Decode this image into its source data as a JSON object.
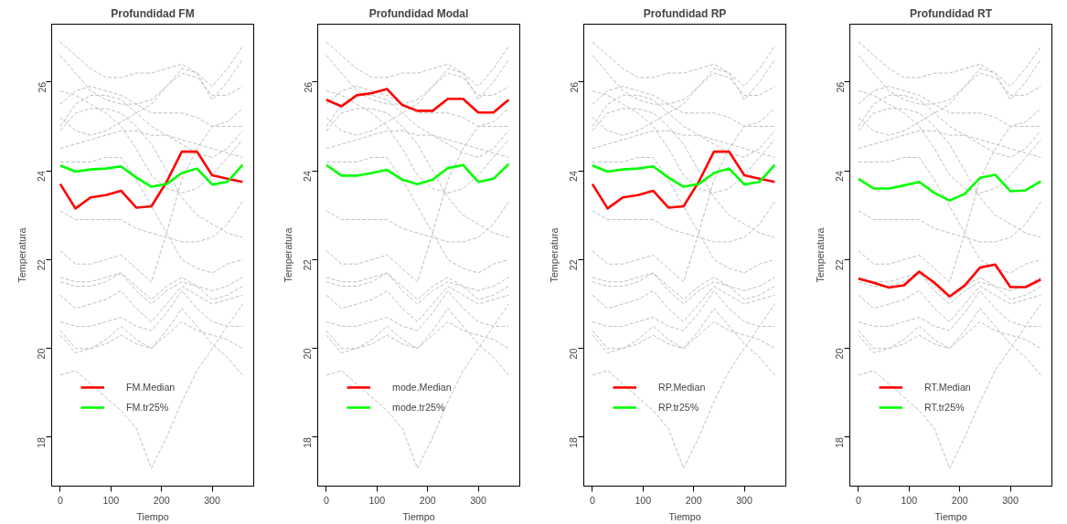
{
  "chart_data": [
    {
      "type": "line",
      "title": "Profundidad FM",
      "xlabel": "Tiempo",
      "ylabel": "Temperatura",
      "x": [
        0,
        30,
        60,
        90,
        120,
        150,
        180,
        210,
        240,
        270,
        300,
        330,
        360
      ],
      "xlim": [
        -17,
        382
      ],
      "ylim": [
        16.9,
        27.3
      ],
      "xticks": [
        0,
        100,
        200,
        300
      ],
      "yticks": [
        18,
        20,
        22,
        24,
        26
      ],
      "grid": false,
      "legend": "bottom left",
      "series": [
        {
          "color": "#bebebe",
          "line_style": "dashed",
          "values": [
            26.9,
            26.6,
            26.3,
            26.1,
            26.1,
            26.2,
            26.2,
            26.3,
            26.4,
            26.2,
            25.9,
            26.3,
            26.8
          ]
        },
        {
          "color": "#bebebe",
          "line_style": "dashed",
          "values": [
            26.6,
            26.2,
            25.8,
            25.6,
            25.5,
            25.5,
            25.6,
            25.9,
            26.3,
            26.2,
            25.6,
            26.0,
            26.5
          ]
        },
        {
          "color": "#bebebe",
          "line_style": "dashed",
          "values": [
            25.0,
            25.5,
            25.7,
            25.7,
            25.6,
            25.3,
            25.0,
            24.8,
            24.6,
            24.4,
            24.3,
            24.5,
            24.9
          ]
        },
        {
          "color": "#bebebe",
          "line_style": "dashed",
          "values": [
            25.2,
            24.9,
            24.8,
            24.9,
            25.1,
            25.3,
            25.5,
            25.9,
            26.2,
            26.1,
            25.7,
            25.7,
            25.9
          ]
        },
        {
          "color": "#bebebe",
          "line_style": "dashed",
          "values": [
            25.5,
            25.8,
            25.9,
            25.8,
            25.7,
            25.5,
            25.3,
            25.3,
            25.3,
            25.2,
            25.0,
            25.1,
            25.4
          ]
        },
        {
          "color": "#bebebe",
          "line_style": "dashed",
          "values": [
            24.9,
            25.3,
            25.4,
            25.4,
            25.3,
            25.0,
            24.6,
            24.0,
            23.4,
            23.0,
            22.8,
            22.6,
            22.5
          ]
        },
        {
          "color": "#bebebe",
          "line_style": "dashed",
          "values": [
            24.5,
            24.6,
            24.7,
            24.8,
            24.9,
            24.9,
            24.8,
            24.8,
            24.7,
            24.6,
            24.5,
            24.4,
            24.3
          ]
        },
        {
          "color": "#bebebe",
          "line_style": "dashed",
          "values": [
            23.1,
            22.9,
            22.9,
            22.9,
            22.9,
            22.7,
            22.6,
            22.5,
            22.4,
            22.4,
            22.5,
            22.8,
            23.3
          ]
        },
        {
          "color": "#bebebe",
          "line_style": "dashed",
          "values": [
            24.2,
            24.2,
            24.2,
            24.3,
            24.3,
            23.8,
            23.2,
            22.6,
            22.0,
            21.8,
            21.7,
            21.9,
            22.0
          ]
        },
        {
          "color": "#bebebe",
          "line_style": "dashed",
          "values": [
            22.2,
            21.9,
            21.9,
            22.0,
            22.1,
            21.8,
            21.5,
            22.6,
            23.8,
            24.5,
            25.0,
            25.0,
            25.0
          ]
        },
        {
          "color": "#bebebe",
          "line_style": "dashed",
          "values": [
            21.6,
            21.5,
            21.5,
            21.6,
            21.7,
            21.4,
            21.1,
            21.4,
            21.6,
            21.4,
            21.1,
            21.2,
            21.4
          ]
        },
        {
          "color": "#bebebe",
          "line_style": "dashed",
          "values": [
            21.5,
            21.4,
            21.4,
            21.5,
            21.7,
            21.3,
            21.0,
            21.3,
            21.5,
            21.4,
            21.3,
            21.4,
            21.6
          ]
        },
        {
          "color": "#bebebe",
          "line_style": "dashed",
          "values": [
            21.2,
            20.9,
            21.0,
            21.1,
            21.3,
            20.9,
            20.6,
            21.0,
            21.4,
            21.2,
            21.0,
            21.1,
            21.2
          ]
        },
        {
          "color": "#bebebe",
          "line_style": "dashed",
          "values": [
            20.6,
            20.5,
            20.5,
            20.6,
            20.7,
            20.5,
            20.4,
            20.8,
            21.3,
            20.9,
            20.6,
            20.5,
            20.5
          ]
        },
        {
          "color": "#bebebe",
          "line_style": "dashed",
          "values": [
            20.4,
            20.0,
            20.0,
            20.1,
            20.3,
            20.1,
            20.0,
            20.3,
            20.6,
            20.4,
            20.3,
            20.2,
            20.0
          ]
        },
        {
          "color": "#bebebe",
          "line_style": "dashed",
          "values": [
            19.4,
            19.5,
            19.2,
            18.9,
            18.6,
            18.2,
            17.3,
            18.0,
            18.8,
            19.5,
            20.0,
            20.5,
            21.0
          ]
        },
        {
          "color": "#bebebe",
          "line_style": "dashed",
          "values": [
            20.3,
            19.9,
            20.0,
            20.2,
            20.5,
            20.2,
            20.0,
            20.4,
            20.9,
            20.5,
            20.1,
            19.8,
            19.4
          ]
        },
        {
          "color": "#bebebe",
          "line_style": "dashed",
          "values": [
            25.8,
            25.7,
            25.5,
            25.3,
            25.0,
            24.5,
            23.9,
            23.6,
            23.5,
            23.6,
            23.9,
            24.3,
            24.7
          ]
        },
        {
          "name": "FM.Median",
          "color": "#ff0000",
          "line_style": "solid",
          "values": [
            23.7,
            23.15,
            23.4,
            23.45,
            23.55,
            23.17,
            23.2,
            23.75,
            24.43,
            24.43,
            23.9,
            23.82,
            23.75
          ]
        },
        {
          "name": "FM.tr25%",
          "color": "#00ff00",
          "line_style": "solid",
          "values": [
            24.12,
            23.98,
            24.03,
            24.05,
            24.1,
            23.85,
            23.64,
            23.7,
            23.95,
            24.05,
            23.69,
            23.75,
            24.13
          ]
        }
      ]
    },
    {
      "type": "line",
      "title": "Profundidad Modal",
      "xlabel": "Tiempo",
      "ylabel": "Temperatura",
      "x": [
        0,
        30,
        60,
        90,
        120,
        150,
        180,
        210,
        240,
        270,
        300,
        330,
        360
      ],
      "xlim": [
        -17,
        382
      ],
      "ylim": [
        16.9,
        27.3
      ],
      "xticks": [
        0,
        100,
        200,
        300
      ],
      "yticks": [
        18,
        20,
        22,
        24,
        26
      ],
      "grid": false,
      "legend": "bottom left",
      "series": [
        {
          "color": "#bebebe",
          "line_style": "dashed",
          "values": [
            26.9,
            26.6,
            26.3,
            26.1,
            26.1,
            26.2,
            26.2,
            26.3,
            26.4,
            26.2,
            25.9,
            26.3,
            26.8
          ]
        },
        {
          "color": "#bebebe",
          "line_style": "dashed",
          "values": [
            26.6,
            26.2,
            25.8,
            25.6,
            25.5,
            25.5,
            25.6,
            25.9,
            26.3,
            26.2,
            25.6,
            26.0,
            26.5
          ]
        },
        {
          "color": "#bebebe",
          "line_style": "dashed",
          "values": [
            25.0,
            25.5,
            25.7,
            25.7,
            25.6,
            25.3,
            25.0,
            24.8,
            24.6,
            24.4,
            24.3,
            24.5,
            24.9
          ]
        },
        {
          "color": "#bebebe",
          "line_style": "dashed",
          "values": [
            25.2,
            24.9,
            24.8,
            24.9,
            25.1,
            25.3,
            25.5,
            25.9,
            26.2,
            26.1,
            25.7,
            25.7,
            25.9
          ]
        },
        {
          "color": "#bebebe",
          "line_style": "dashed",
          "values": [
            25.5,
            25.8,
            25.9,
            25.8,
            25.7,
            25.5,
            25.3,
            25.3,
            25.3,
            25.2,
            25.0,
            25.1,
            25.4
          ]
        },
        {
          "color": "#bebebe",
          "line_style": "dashed",
          "values": [
            24.9,
            25.3,
            25.4,
            25.4,
            25.3,
            25.0,
            24.6,
            24.0,
            23.4,
            23.0,
            22.8,
            22.6,
            22.5
          ]
        },
        {
          "color": "#bebebe",
          "line_style": "dashed",
          "values": [
            24.5,
            24.6,
            24.7,
            24.8,
            24.9,
            24.9,
            24.8,
            24.8,
            24.7,
            24.6,
            24.5,
            24.4,
            24.3
          ]
        },
        {
          "color": "#bebebe",
          "line_style": "dashed",
          "values": [
            23.1,
            22.9,
            22.9,
            22.9,
            22.9,
            22.7,
            22.6,
            22.5,
            22.4,
            22.4,
            22.5,
            22.8,
            23.3
          ]
        },
        {
          "color": "#bebebe",
          "line_style": "dashed",
          "values": [
            24.2,
            24.2,
            24.2,
            24.3,
            24.3,
            23.8,
            23.2,
            22.6,
            22.0,
            21.8,
            21.7,
            21.9,
            22.0
          ]
        },
        {
          "color": "#bebebe",
          "line_style": "dashed",
          "values": [
            22.2,
            21.9,
            21.9,
            22.0,
            22.1,
            21.8,
            21.5,
            22.6,
            23.8,
            24.5,
            25.0,
            25.0,
            25.0
          ]
        },
        {
          "color": "#bebebe",
          "line_style": "dashed",
          "values": [
            21.6,
            21.5,
            21.5,
            21.6,
            21.7,
            21.4,
            21.1,
            21.4,
            21.6,
            21.4,
            21.1,
            21.2,
            21.4
          ]
        },
        {
          "color": "#bebebe",
          "line_style": "dashed",
          "values": [
            21.5,
            21.4,
            21.4,
            21.5,
            21.7,
            21.3,
            21.0,
            21.3,
            21.5,
            21.4,
            21.3,
            21.4,
            21.6
          ]
        },
        {
          "color": "#bebebe",
          "line_style": "dashed",
          "values": [
            21.2,
            20.9,
            21.0,
            21.1,
            21.3,
            20.9,
            20.6,
            21.0,
            21.4,
            21.2,
            21.0,
            21.1,
            21.2
          ]
        },
        {
          "color": "#bebebe",
          "line_style": "dashed",
          "values": [
            20.6,
            20.5,
            20.5,
            20.6,
            20.7,
            20.5,
            20.4,
            20.8,
            21.3,
            20.9,
            20.6,
            20.5,
            20.5
          ]
        },
        {
          "color": "#bebebe",
          "line_style": "dashed",
          "values": [
            20.4,
            20.0,
            20.0,
            20.1,
            20.3,
            20.1,
            20.0,
            20.3,
            20.6,
            20.4,
            20.3,
            20.2,
            20.0
          ]
        },
        {
          "color": "#bebebe",
          "line_style": "dashed",
          "values": [
            19.4,
            19.5,
            19.2,
            18.9,
            18.6,
            18.2,
            17.3,
            18.0,
            18.8,
            19.5,
            20.0,
            20.5,
            21.0
          ]
        },
        {
          "color": "#bebebe",
          "line_style": "dashed",
          "values": [
            20.3,
            19.9,
            20.0,
            20.2,
            20.5,
            20.2,
            20.0,
            20.4,
            20.9,
            20.5,
            20.1,
            19.8,
            19.4
          ]
        },
        {
          "color": "#bebebe",
          "line_style": "dashed",
          "values": [
            25.8,
            25.7,
            25.5,
            25.3,
            25.0,
            24.5,
            23.9,
            23.6,
            23.5,
            23.6,
            23.9,
            24.3,
            24.7
          ]
        },
        {
          "name": "mode.Median",
          "color": "#ff0000",
          "line_style": "solid",
          "values": [
            25.6,
            25.45,
            25.7,
            25.75,
            25.84,
            25.48,
            25.35,
            25.35,
            25.62,
            25.62,
            25.31,
            25.31,
            25.6
          ]
        },
        {
          "name": "mode.tr25%",
          "color": "#00ff00",
          "line_style": "solid",
          "values": [
            24.13,
            23.89,
            23.89,
            23.95,
            24.02,
            23.8,
            23.7,
            23.8,
            24.06,
            24.13,
            23.75,
            23.82,
            24.15
          ]
        }
      ]
    },
    {
      "type": "line",
      "title": "Profundidad RP",
      "xlabel": "Tiempo",
      "ylabel": "Temperatura",
      "x": [
        0,
        30,
        60,
        90,
        120,
        150,
        180,
        210,
        240,
        270,
        300,
        330,
        360
      ],
      "xlim": [
        -17,
        382
      ],
      "ylim": [
        16.9,
        27.3
      ],
      "xticks": [
        0,
        100,
        200,
        300
      ],
      "yticks": [
        18,
        20,
        22,
        24,
        26
      ],
      "grid": false,
      "legend": "bottom left",
      "series": [
        {
          "color": "#bebebe",
          "line_style": "dashed",
          "values": [
            26.9,
            26.6,
            26.3,
            26.1,
            26.1,
            26.2,
            26.2,
            26.3,
            26.4,
            26.2,
            25.9,
            26.3,
            26.8
          ]
        },
        {
          "color": "#bebebe",
          "line_style": "dashed",
          "values": [
            26.6,
            26.2,
            25.8,
            25.6,
            25.5,
            25.5,
            25.6,
            25.9,
            26.3,
            26.2,
            25.6,
            26.0,
            26.5
          ]
        },
        {
          "color": "#bebebe",
          "line_style": "dashed",
          "values": [
            25.0,
            25.5,
            25.7,
            25.7,
            25.6,
            25.3,
            25.0,
            24.8,
            24.6,
            24.4,
            24.3,
            24.5,
            24.9
          ]
        },
        {
          "color": "#bebebe",
          "line_style": "dashed",
          "values": [
            25.2,
            24.9,
            24.8,
            24.9,
            25.1,
            25.3,
            25.5,
            25.9,
            26.2,
            26.1,
            25.7,
            25.7,
            25.9
          ]
        },
        {
          "color": "#bebebe",
          "line_style": "dashed",
          "values": [
            25.5,
            25.8,
            25.9,
            25.8,
            25.7,
            25.5,
            25.3,
            25.3,
            25.3,
            25.2,
            25.0,
            25.1,
            25.4
          ]
        },
        {
          "color": "#bebebe",
          "line_style": "dashed",
          "values": [
            24.9,
            25.3,
            25.4,
            25.4,
            25.3,
            25.0,
            24.6,
            24.0,
            23.4,
            23.0,
            22.8,
            22.6,
            22.5
          ]
        },
        {
          "color": "#bebebe",
          "line_style": "dashed",
          "values": [
            24.5,
            24.6,
            24.7,
            24.8,
            24.9,
            24.9,
            24.8,
            24.8,
            24.7,
            24.6,
            24.5,
            24.4,
            24.3
          ]
        },
        {
          "color": "#bebebe",
          "line_style": "dashed",
          "values": [
            23.1,
            22.9,
            22.9,
            22.9,
            22.9,
            22.7,
            22.6,
            22.5,
            22.4,
            22.4,
            22.5,
            22.8,
            23.3
          ]
        },
        {
          "color": "#bebebe",
          "line_style": "dashed",
          "values": [
            24.2,
            24.2,
            24.2,
            24.3,
            24.3,
            23.8,
            23.2,
            22.6,
            22.0,
            21.8,
            21.7,
            21.9,
            22.0
          ]
        },
        {
          "color": "#bebebe",
          "line_style": "dashed",
          "values": [
            22.2,
            21.9,
            21.9,
            22.0,
            22.1,
            21.8,
            21.5,
            22.6,
            23.8,
            24.5,
            25.0,
            25.0,
            25.0
          ]
        },
        {
          "color": "#bebebe",
          "line_style": "dashed",
          "values": [
            21.6,
            21.5,
            21.5,
            21.6,
            21.7,
            21.4,
            21.1,
            21.4,
            21.6,
            21.4,
            21.1,
            21.2,
            21.4
          ]
        },
        {
          "color": "#bebebe",
          "line_style": "dashed",
          "values": [
            21.5,
            21.4,
            21.4,
            21.5,
            21.7,
            21.3,
            21.0,
            21.3,
            21.5,
            21.4,
            21.3,
            21.4,
            21.6
          ]
        },
        {
          "color": "#bebebe",
          "line_style": "dashed",
          "values": [
            21.2,
            20.9,
            21.0,
            21.1,
            21.3,
            20.9,
            20.6,
            21.0,
            21.4,
            21.2,
            21.0,
            21.1,
            21.2
          ]
        },
        {
          "color": "#bebebe",
          "line_style": "dashed",
          "values": [
            20.6,
            20.5,
            20.5,
            20.6,
            20.7,
            20.5,
            20.4,
            20.8,
            21.3,
            20.9,
            20.6,
            20.5,
            20.5
          ]
        },
        {
          "color": "#bebebe",
          "line_style": "dashed",
          "values": [
            20.4,
            20.0,
            20.0,
            20.1,
            20.3,
            20.1,
            20.0,
            20.3,
            20.6,
            20.4,
            20.3,
            20.2,
            20.0
          ]
        },
        {
          "color": "#bebebe",
          "line_style": "dashed",
          "values": [
            19.4,
            19.5,
            19.2,
            18.9,
            18.6,
            18.2,
            17.3,
            18.0,
            18.8,
            19.5,
            20.0,
            20.5,
            21.0
          ]
        },
        {
          "color": "#bebebe",
          "line_style": "dashed",
          "values": [
            20.3,
            19.9,
            20.0,
            20.2,
            20.5,
            20.2,
            20.0,
            20.4,
            20.9,
            20.5,
            20.1,
            19.8,
            19.4
          ]
        },
        {
          "color": "#bebebe",
          "line_style": "dashed",
          "values": [
            25.8,
            25.7,
            25.5,
            25.3,
            25.0,
            24.5,
            23.9,
            23.6,
            23.5,
            23.6,
            23.9,
            24.3,
            24.7
          ]
        },
        {
          "name": "RP.Median",
          "color": "#ff0000",
          "line_style": "solid",
          "values": [
            23.7,
            23.15,
            23.4,
            23.45,
            23.55,
            23.17,
            23.2,
            23.75,
            24.43,
            24.43,
            23.9,
            23.82,
            23.75
          ]
        },
        {
          "name": "RP.tr25%",
          "color": "#00ff00",
          "line_style": "solid",
          "values": [
            24.12,
            23.98,
            24.03,
            24.05,
            24.1,
            23.85,
            23.64,
            23.7,
            23.95,
            24.05,
            23.69,
            23.75,
            24.13
          ]
        }
      ]
    },
    {
      "type": "line",
      "title": "Profundidad RT",
      "xlabel": "Tiempo",
      "ylabel": "Temperatura",
      "x": [
        0,
        30,
        60,
        90,
        120,
        150,
        180,
        210,
        240,
        270,
        300,
        330,
        360
      ],
      "xlim": [
        -17,
        382
      ],
      "ylim": [
        16.9,
        27.3
      ],
      "xticks": [
        0,
        100,
        200,
        300
      ],
      "yticks": [
        18,
        20,
        22,
        24,
        26
      ],
      "grid": false,
      "legend": "bottom left",
      "series": [
        {
          "color": "#bebebe",
          "line_style": "dashed",
          "values": [
            26.9,
            26.6,
            26.3,
            26.1,
            26.1,
            26.2,
            26.2,
            26.3,
            26.4,
            26.2,
            25.9,
            26.3,
            26.8
          ]
        },
        {
          "color": "#bebebe",
          "line_style": "dashed",
          "values": [
            26.6,
            26.2,
            25.8,
            25.6,
            25.5,
            25.5,
            25.6,
            25.9,
            26.3,
            26.2,
            25.6,
            26.0,
            26.5
          ]
        },
        {
          "color": "#bebebe",
          "line_style": "dashed",
          "values": [
            25.0,
            25.5,
            25.7,
            25.7,
            25.6,
            25.3,
            25.0,
            24.8,
            24.6,
            24.4,
            24.3,
            24.5,
            24.9
          ]
        },
        {
          "color": "#bebebe",
          "line_style": "dashed",
          "values": [
            25.2,
            24.9,
            24.8,
            24.9,
            25.1,
            25.3,
            25.5,
            25.9,
            26.2,
            26.1,
            25.7,
            25.7,
            25.9
          ]
        },
        {
          "color": "#bebebe",
          "line_style": "dashed",
          "values": [
            25.5,
            25.8,
            25.9,
            25.8,
            25.7,
            25.5,
            25.3,
            25.3,
            25.3,
            25.2,
            25.0,
            25.1,
            25.4
          ]
        },
        {
          "color": "#bebebe",
          "line_style": "dashed",
          "values": [
            24.9,
            25.3,
            25.4,
            25.4,
            25.3,
            25.0,
            24.6,
            24.0,
            23.4,
            23.0,
            22.8,
            22.6,
            22.5
          ]
        },
        {
          "color": "#bebebe",
          "line_style": "dashed",
          "values": [
            24.5,
            24.6,
            24.7,
            24.8,
            24.9,
            24.9,
            24.8,
            24.8,
            24.7,
            24.6,
            24.5,
            24.4,
            24.3
          ]
        },
        {
          "color": "#bebebe",
          "line_style": "dashed",
          "values": [
            23.1,
            22.9,
            22.9,
            22.9,
            22.9,
            22.7,
            22.6,
            22.5,
            22.4,
            22.4,
            22.5,
            22.8,
            23.3
          ]
        },
        {
          "color": "#bebebe",
          "line_style": "dashed",
          "values": [
            24.2,
            24.2,
            24.2,
            24.3,
            24.3,
            23.8,
            23.2,
            22.6,
            22.0,
            21.8,
            21.7,
            21.9,
            22.0
          ]
        },
        {
          "color": "#bebebe",
          "line_style": "dashed",
          "values": [
            22.2,
            21.9,
            21.9,
            22.0,
            22.1,
            21.8,
            21.5,
            22.6,
            23.8,
            24.5,
            25.0,
            25.0,
            25.0
          ]
        },
        {
          "color": "#bebebe",
          "line_style": "dashed",
          "values": [
            21.6,
            21.5,
            21.5,
            21.6,
            21.7,
            21.4,
            21.1,
            21.4,
            21.6,
            21.4,
            21.1,
            21.2,
            21.4
          ]
        },
        {
          "color": "#bebebe",
          "line_style": "dashed",
          "values": [
            21.5,
            21.4,
            21.4,
            21.5,
            21.7,
            21.3,
            21.0,
            21.3,
            21.5,
            21.4,
            21.3,
            21.4,
            21.6
          ]
        },
        {
          "color": "#bebebe",
          "line_style": "dashed",
          "values": [
            21.2,
            20.9,
            21.0,
            21.1,
            21.3,
            20.9,
            20.6,
            21.0,
            21.4,
            21.2,
            21.0,
            21.1,
            21.2
          ]
        },
        {
          "color": "#bebebe",
          "line_style": "dashed",
          "values": [
            20.6,
            20.5,
            20.5,
            20.6,
            20.7,
            20.5,
            20.4,
            20.8,
            21.3,
            20.9,
            20.6,
            20.5,
            20.5
          ]
        },
        {
          "color": "#bebebe",
          "line_style": "dashed",
          "values": [
            20.4,
            20.0,
            20.0,
            20.1,
            20.3,
            20.1,
            20.0,
            20.3,
            20.6,
            20.4,
            20.3,
            20.2,
            20.0
          ]
        },
        {
          "color": "#bebebe",
          "line_style": "dashed",
          "values": [
            19.4,
            19.5,
            19.2,
            18.9,
            18.6,
            18.2,
            17.3,
            18.0,
            18.8,
            19.5,
            20.0,
            20.5,
            21.0
          ]
        },
        {
          "color": "#bebebe",
          "line_style": "dashed",
          "values": [
            20.3,
            19.9,
            20.0,
            20.2,
            20.5,
            20.2,
            20.0,
            20.4,
            20.9,
            20.5,
            20.1,
            19.8,
            19.4
          ]
        },
        {
          "color": "#bebebe",
          "line_style": "dashed",
          "values": [
            25.8,
            25.7,
            25.5,
            25.3,
            25.0,
            24.5,
            23.9,
            23.6,
            23.5,
            23.6,
            23.9,
            24.3,
            24.7
          ]
        },
        {
          "name": "RT.Median",
          "color": "#ff0000",
          "line_style": "solid",
          "values": [
            21.57,
            21.48,
            21.37,
            21.42,
            21.73,
            21.48,
            21.17,
            21.42,
            21.82,
            21.89,
            21.38,
            21.38,
            21.55
          ]
        },
        {
          "name": "RT.tr25%",
          "color": "#00ff00",
          "line_style": "solid",
          "values": [
            23.82,
            23.6,
            23.6,
            23.67,
            23.75,
            23.5,
            23.33,
            23.48,
            23.84,
            23.91,
            23.54,
            23.56,
            23.76
          ]
        }
      ]
    }
  ]
}
